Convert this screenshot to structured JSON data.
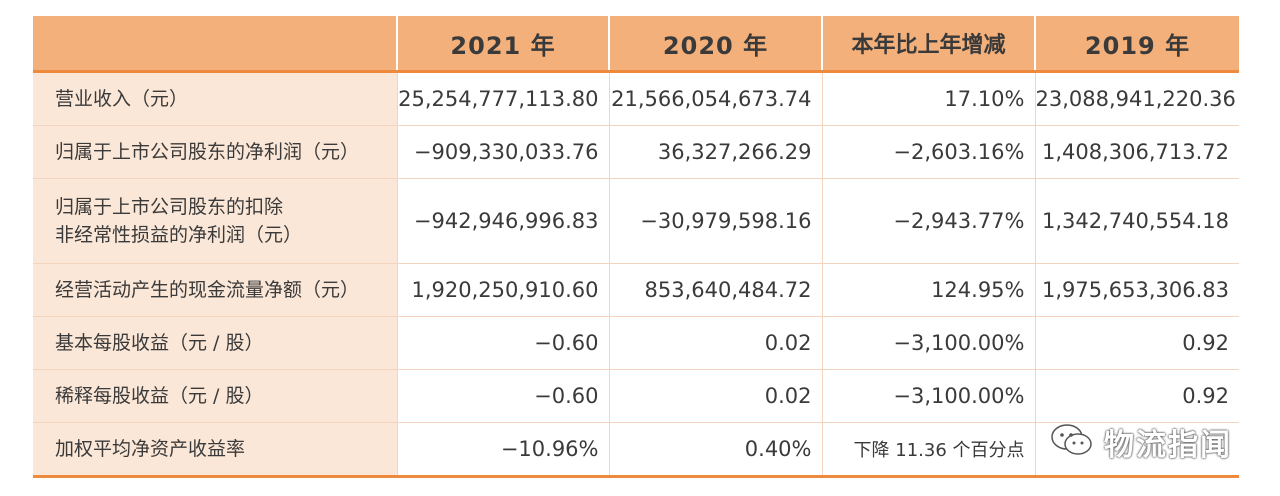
{
  "table": {
    "headers": [
      "",
      "2021 年",
      "2020 年",
      "本年比上年增减",
      "2019 年"
    ],
    "rows": [
      {
        "label": "营业收入（元）",
        "values": [
          "25,254,777,113.80",
          "21,566,054,673.74",
          "17.10%",
          "23,088,941,220.36"
        ]
      },
      {
        "label": "归属于上市公司股东的净利润（元）",
        "values": [
          "−909,330,033.76",
          "36,327,266.29",
          "−2,603.16%",
          "1,408,306,713.72"
        ]
      },
      {
        "label_line1": "归属于上市公司股东的扣除",
        "label_line2": "非经常性损益的净利润（元）",
        "values": [
          "−942,946,996.83",
          "−30,979,598.16",
          "−2,943.77%",
          "1,342,740,554.18"
        ]
      },
      {
        "label": "经营活动产生的现金流量净额（元）",
        "values": [
          "1,920,250,910.60",
          "853,640,484.72",
          "124.95%",
          "1,975,653,306.83"
        ]
      },
      {
        "label": "基本每股收益（元 / 股）",
        "values": [
          "−0.60",
          "0.02",
          "−3,100.00%",
          "0.92"
        ]
      },
      {
        "label": "稀释每股收益（元 / 股）",
        "values": [
          "−0.60",
          "0.02",
          "−3,100.00%",
          "0.92"
        ]
      },
      {
        "label": "加权平均净资产收益率",
        "values": [
          "−10.96%",
          "0.40%",
          "下降 11.36 个百分点",
          ""
        ]
      }
    ]
  },
  "watermark": {
    "text": "物流指闻",
    "icon": "wechat-icon"
  },
  "colors": {
    "header_bg": "#f4b07a",
    "label_bg": "#fbe7d7",
    "accent_line": "#ee8a3e",
    "grid": "#f2d4bf"
  }
}
